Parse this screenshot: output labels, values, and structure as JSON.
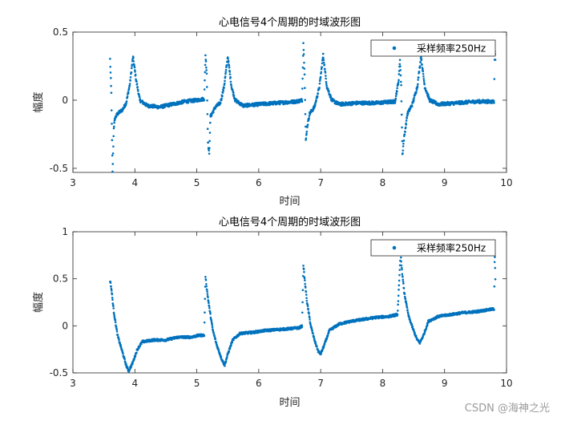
{
  "chart_data": [
    {
      "type": "scatter",
      "title": "心电信号4个周期的时域波形图",
      "xlabel": "时间",
      "ylabel": "幅度",
      "xlim": [
        3,
        10
      ],
      "ylim": [
        -0.53,
        0.5
      ],
      "xticks": [
        "3",
        "4",
        "5",
        "6",
        "7",
        "8",
        "9",
        "10"
      ],
      "yticks": [
        "-0.5",
        "0",
        "0.5"
      ],
      "ytick_values": [
        -0.5,
        0,
        0.5
      ],
      "legend": {
        "label": "采样频率250Hz",
        "position": "top-right"
      },
      "color": "#0072BD",
      "sample_rate_hz": 250,
      "series": [
        {
          "x_start": 3.6,
          "x_end": 9.82,
          "keypoints": [
            [
              3.6,
              0.3
            ],
            [
              3.62,
              0.05
            ],
            [
              3.64,
              -0.53
            ],
            [
              3.66,
              -0.2
            ],
            [
              3.68,
              -0.13
            ],
            [
              3.72,
              -0.1
            ],
            [
              3.8,
              -0.07
            ],
            [
              3.86,
              -0.02
            ],
            [
              3.92,
              0.12
            ],
            [
              3.97,
              0.32
            ],
            [
              4.02,
              0.15
            ],
            [
              4.08,
              0.0
            ],
            [
              4.2,
              -0.04
            ],
            [
              4.4,
              -0.05
            ],
            [
              4.6,
              -0.03
            ],
            [
              4.8,
              -0.01
            ],
            [
              5.0,
              0.0
            ],
            [
              5.12,
              0.01
            ],
            [
              5.14,
              0.33
            ],
            [
              5.16,
              0.2
            ],
            [
              5.18,
              -0.3
            ],
            [
              5.2,
              -0.4
            ],
            [
              5.22,
              -0.12
            ],
            [
              5.3,
              -0.05
            ],
            [
              5.38,
              -0.02
            ],
            [
              5.44,
              0.1
            ],
            [
              5.5,
              0.32
            ],
            [
              5.56,
              0.1
            ],
            [
              5.62,
              0.0
            ],
            [
              5.75,
              -0.04
            ],
            [
              6.0,
              -0.03
            ],
            [
              6.3,
              -0.02
            ],
            [
              6.6,
              -0.01
            ],
            [
              6.7,
              0.0
            ],
            [
              6.72,
              0.42
            ],
            [
              6.74,
              0.2
            ],
            [
              6.76,
              -0.3
            ],
            [
              6.78,
              -0.2
            ],
            [
              6.82,
              -0.1
            ],
            [
              6.9,
              -0.05
            ],
            [
              6.98,
              0.1
            ],
            [
              7.04,
              0.33
            ],
            [
              7.1,
              0.1
            ],
            [
              7.18,
              0.0
            ],
            [
              7.3,
              -0.03
            ],
            [
              7.6,
              -0.02
            ],
            [
              7.9,
              -0.02
            ],
            [
              8.2,
              -0.01
            ],
            [
              8.26,
              0.15
            ],
            [
              8.28,
              0.3
            ],
            [
              8.3,
              0.1
            ],
            [
              8.32,
              -0.4
            ],
            [
              8.34,
              -0.3
            ],
            [
              8.4,
              -0.1
            ],
            [
              8.48,
              -0.03
            ],
            [
              8.56,
              0.1
            ],
            [
              8.62,
              0.32
            ],
            [
              8.68,
              0.1
            ],
            [
              8.76,
              0.0
            ],
            [
              8.9,
              -0.03
            ],
            [
              9.2,
              -0.02
            ],
            [
              9.5,
              -0.01
            ],
            [
              9.8,
              -0.01
            ],
            [
              9.81,
              0.38
            ],
            [
              9.82,
              0.3
            ]
          ]
        }
      ]
    },
    {
      "type": "scatter",
      "title": "心电信号4个周期的时域波形图",
      "xlabel": "时间",
      "ylabel": "幅度",
      "xlim": [
        3,
        10
      ],
      "ylim": [
        -0.5,
        1
      ],
      "xticks": [
        "3",
        "4",
        "5",
        "6",
        "7",
        "8",
        "9",
        "10"
      ],
      "yticks": [
        "-0.5",
        "0",
        "0.5",
        "1"
      ],
      "ytick_values": [
        -0.5,
        0,
        0.5,
        1
      ],
      "legend": {
        "label": "采样频率250Hz",
        "position": "top-right"
      },
      "color": "#0072BD",
      "sample_rate_hz": 250,
      "series": [
        {
          "x_start": 3.6,
          "x_end": 9.82,
          "keypoints": [
            [
              3.6,
              0.48
            ],
            [
              3.62,
              0.4
            ],
            [
              3.66,
              0.15
            ],
            [
              3.72,
              -0.1
            ],
            [
              3.8,
              -0.28
            ],
            [
              3.86,
              -0.42
            ],
            [
              3.9,
              -0.48
            ],
            [
              3.96,
              -0.4
            ],
            [
              4.04,
              -0.25
            ],
            [
              4.12,
              -0.17
            ],
            [
              4.3,
              -0.15
            ],
            [
              4.5,
              -0.15
            ],
            [
              4.7,
              -0.12
            ],
            [
              4.9,
              -0.12
            ],
            [
              5.05,
              -0.1
            ],
            [
              5.12,
              -0.1
            ],
            [
              5.14,
              0.53
            ],
            [
              5.16,
              0.4
            ],
            [
              5.2,
              0.2
            ],
            [
              5.26,
              -0.05
            ],
            [
              5.32,
              -0.2
            ],
            [
              5.4,
              -0.35
            ],
            [
              5.45,
              -0.42
            ],
            [
              5.5,
              -0.3
            ],
            [
              5.58,
              -0.15
            ],
            [
              5.7,
              -0.08
            ],
            [
              5.9,
              -0.07
            ],
            [
              6.1,
              -0.05
            ],
            [
              6.3,
              -0.04
            ],
            [
              6.5,
              -0.03
            ],
            [
              6.66,
              -0.02
            ],
            [
              6.7,
              0.0
            ],
            [
              6.72,
              0.65
            ],
            [
              6.74,
              0.5
            ],
            [
              6.78,
              0.25
            ],
            [
              6.84,
              0.0
            ],
            [
              6.9,
              -0.15
            ],
            [
              6.96,
              -0.27
            ],
            [
              7.0,
              -0.3
            ],
            [
              7.06,
              -0.2
            ],
            [
              7.14,
              -0.05
            ],
            [
              7.3,
              0.02
            ],
            [
              7.5,
              0.05
            ],
            [
              7.7,
              0.07
            ],
            [
              7.9,
              0.09
            ],
            [
              8.1,
              0.1
            ],
            [
              8.24,
              0.12
            ],
            [
              8.27,
              0.5
            ],
            [
              8.29,
              0.78
            ],
            [
              8.31,
              0.6
            ],
            [
              8.35,
              0.35
            ],
            [
              8.42,
              0.1
            ],
            [
              8.5,
              -0.05
            ],
            [
              8.56,
              -0.15
            ],
            [
              8.6,
              -0.18
            ],
            [
              8.66,
              -0.1
            ],
            [
              8.74,
              0.05
            ],
            [
              8.9,
              0.1
            ],
            [
              9.1,
              0.12
            ],
            [
              9.3,
              0.14
            ],
            [
              9.5,
              0.15
            ],
            [
              9.7,
              0.17
            ],
            [
              9.8,
              0.18
            ],
            [
              9.81,
              0.8
            ],
            [
              9.82,
              0.5
            ]
          ]
        }
      ]
    }
  ],
  "watermark": "CSDN @海神之光"
}
